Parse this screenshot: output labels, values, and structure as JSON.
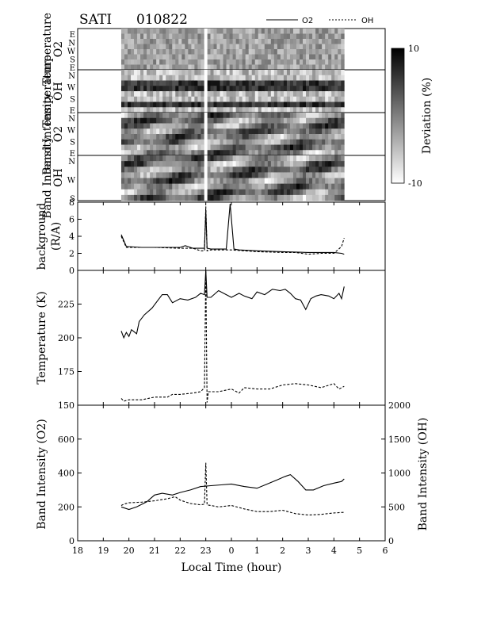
{
  "header": {
    "station": "SATI",
    "date": "010822"
  },
  "legend": {
    "o2_label": "O2",
    "oh_label": "OH",
    "placement": "top-right"
  },
  "colorbar": {
    "label": "Deviation (%)",
    "max_label": "10",
    "min_label": "-10",
    "range": [
      -10,
      10
    ]
  },
  "keogram_panels": [
    {
      "title_line1": "Temperature",
      "title_line2": "O2",
      "directions": [
        "E",
        "N",
        "W",
        "S",
        "E"
      ]
    },
    {
      "title_line1": "Temperature",
      "title_line2": "OH",
      "directions": [
        "N",
        "W",
        "S",
        "E"
      ]
    },
    {
      "title_line1": "Band Intensity",
      "title_line2": "O2",
      "directions": [
        "N",
        "W",
        "S",
        "E"
      ]
    },
    {
      "title_line1": "Band Intensity",
      "title_line2": "OH",
      "directions": [
        "N",
        "W",
        "S"
      ]
    }
  ],
  "x_axis": {
    "label": "Local Time (hour)",
    "ticks": [
      "18",
      "19",
      "20",
      "21",
      "22",
      "23",
      "0",
      "1",
      "2",
      "3",
      "4",
      "5",
      "6"
    ]
  },
  "chart_data": [
    {
      "type": "line",
      "ylabel_line1": "background",
      "ylabel_line2": "(R/A)",
      "ylim": [
        0,
        8
      ],
      "yticks": [
        "0",
        "2",
        "4",
        "6",
        "8"
      ],
      "series": [
        {
          "name": "O2",
          "x": [
            19.7,
            19.9,
            20.5,
            21,
            21.5,
            22,
            22.2,
            22.5,
            22.8,
            22.95,
            23.0,
            23.05,
            23.2,
            23.8,
            23.95,
            24.1,
            24.3,
            25,
            26,
            27,
            28,
            28.3,
            28.4
          ],
          "y": [
            4.2,
            2.8,
            2.7,
            2.7,
            2.7,
            2.7,
            2.9,
            2.6,
            2.6,
            2.6,
            7.0,
            2.6,
            2.5,
            2.5,
            7.8,
            2.5,
            2.4,
            2.3,
            2.2,
            2.1,
            2.1,
            2.0,
            1.9
          ]
        },
        {
          "name": "OH",
          "x": [
            19.7,
            19.9,
            20.5,
            21,
            22,
            22.5,
            22.8,
            22.95,
            23.0,
            23.05,
            23.2,
            24,
            25,
            26,
            26.5,
            27,
            27.5,
            28,
            28.3,
            28.4
          ],
          "y": [
            4.0,
            2.7,
            2.7,
            2.7,
            2.6,
            2.6,
            2.3,
            2.3,
            7.5,
            2.3,
            2.4,
            2.4,
            2.2,
            2.1,
            2.1,
            1.9,
            2.0,
            2.0,
            2.8,
            3.8
          ]
        }
      ]
    },
    {
      "type": "line",
      "ylabel": "Temperature (K)",
      "ylim": [
        150,
        250
      ],
      "yticks": [
        "150",
        "175",
        "200",
        "225"
      ],
      "series": [
        {
          "name": "O2",
          "x": [
            19.7,
            19.8,
            19.9,
            20.0,
            20.1,
            20.3,
            20.4,
            20.6,
            20.9,
            21.1,
            21.3,
            21.5,
            21.7,
            22.0,
            22.3,
            22.6,
            22.8,
            22.95,
            23.0,
            23.05,
            23.2,
            23.5,
            23.8,
            24.0,
            24.3,
            24.5,
            24.8,
            25.0,
            25.3,
            25.6,
            25.9,
            26.1,
            26.3,
            26.5,
            26.7,
            26.9,
            27.1,
            27.3,
            27.5,
            27.8,
            28.0,
            28.2,
            28.3,
            28.4
          ],
          "y": [
            205,
            200,
            204,
            201,
            206,
            203,
            212,
            217,
            222,
            227,
            232,
            232,
            226,
            229,
            228,
            230,
            233,
            232,
            250,
            230,
            230,
            235,
            232,
            230,
            233,
            231,
            229,
            234,
            232,
            236,
            235,
            236,
            233,
            229,
            228,
            221,
            229,
            231,
            232,
            231,
            229,
            233,
            229,
            238
          ]
        },
        {
          "name": "OH",
          "x": [
            19.7,
            19.8,
            20.0,
            20.5,
            21.0,
            21.5,
            21.7,
            22.0,
            22.5,
            22.8,
            22.95,
            23.0,
            23.05,
            23.1,
            23.5,
            24.0,
            24.3,
            24.5,
            25.0,
            25.5,
            26.0,
            26.5,
            27.0,
            27.5,
            28.0,
            28.2,
            28.4
          ],
          "y": [
            155,
            153,
            154,
            154,
            156,
            156,
            158,
            158,
            159,
            160,
            163,
            249,
            152,
            160,
            160,
            162,
            159,
            163,
            162,
            162,
            165,
            166,
            165,
            163,
            166,
            162,
            164
          ]
        }
      ]
    },
    {
      "type": "line",
      "ylabel_left": "Band Intensity (O2)",
      "ylabel_right": "Band Intensity (OH)",
      "ylim_left": [
        0,
        800
      ],
      "ylim_right": [
        0,
        2000
      ],
      "yticks_left": [
        "0",
        "200",
        "400",
        "600"
      ],
      "yticks_right": [
        "0",
        "500",
        "1000",
        "1500",
        "2000"
      ],
      "series": [
        {
          "name": "O2",
          "axis": "left",
          "x": [
            19.7,
            20.0,
            20.3,
            20.7,
            21.0,
            21.3,
            21.7,
            22.0,
            22.4,
            22.8,
            23.2,
            23.6,
            24.0,
            24.5,
            25.0,
            25.4,
            25.8,
            26.1,
            26.3,
            26.6,
            26.9,
            27.2,
            27.6,
            28.0,
            28.3,
            28.4
          ],
          "y": [
            200,
            185,
            200,
            230,
            270,
            280,
            270,
            285,
            300,
            320,
            325,
            330,
            335,
            320,
            310,
            335,
            360,
            380,
            390,
            350,
            300,
            300,
            325,
            340,
            350,
            365
          ]
        },
        {
          "name": "OH",
          "axis": "right",
          "x": [
            19.7,
            19.8,
            20.0,
            20.5,
            21.0,
            21.5,
            21.8,
            22.0,
            22.4,
            22.8,
            22.95,
            23.0,
            23.05,
            23.2,
            23.5,
            24.0,
            24.5,
            25.0,
            25.5,
            26.0,
            26.5,
            27.0,
            27.5,
            28.0,
            28.4
          ],
          "y": [
            520,
            540,
            560,
            570,
            590,
            620,
            650,
            600,
            550,
            530,
            540,
            1150,
            530,
            520,
            500,
            520,
            470,
            430,
            430,
            450,
            400,
            380,
            390,
            410,
            420
          ]
        }
      ]
    }
  ],
  "colors": {
    "line": "#000000",
    "background": "#ffffff"
  }
}
